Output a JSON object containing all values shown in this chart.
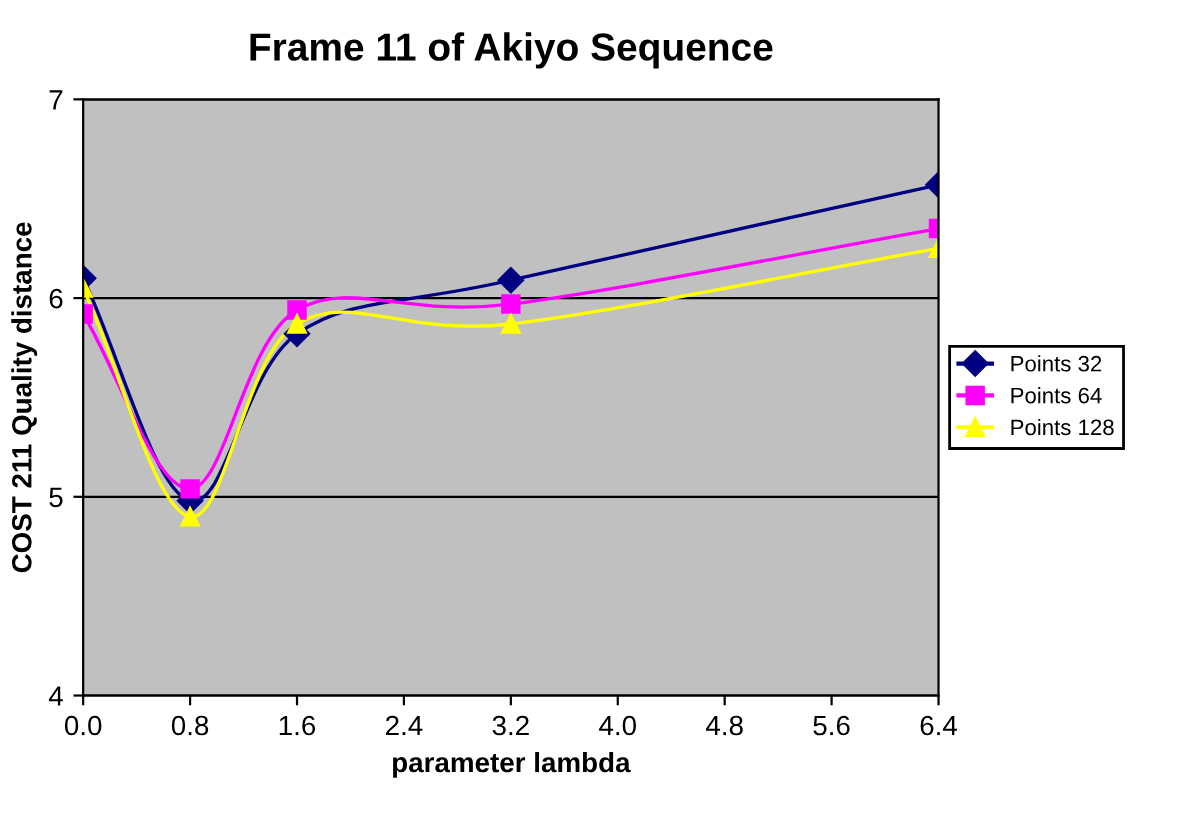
{
  "chart_data": {
    "type": "line",
    "title": "Frame 11 of Akiyo Sequence",
    "xlabel": "parameter lambda",
    "ylabel": "COST 211 Quality distance",
    "x": [
      0.0,
      0.8,
      1.6,
      3.2,
      6.4
    ],
    "series": [
      {
        "name": "Points 32",
        "color": "#000080",
        "marker": "diamond",
        "values": [
          6.1,
          4.98,
          5.82,
          6.09,
          6.57
        ]
      },
      {
        "name": "Points 64",
        "color": "#ff00ff",
        "marker": "square",
        "values": [
          5.92,
          5.04,
          5.94,
          5.97,
          6.35
        ]
      },
      {
        "name": "Points 128",
        "color": "#ffff00",
        "marker": "triangle",
        "values": [
          6.05,
          4.9,
          5.87,
          5.87,
          6.25
        ]
      }
    ],
    "xlim": [
      0.0,
      6.4
    ],
    "xticks": [
      {
        "value": 0.0,
        "label": "0.0"
      },
      {
        "value": 0.8,
        "label": "0.8"
      },
      {
        "value": 1.6,
        "label": "1.6"
      },
      {
        "value": 2.4,
        "label": "2.4"
      },
      {
        "value": 3.2,
        "label": "3.2"
      },
      {
        "value": 4.0,
        "label": "4.0"
      },
      {
        "value": 4.8,
        "label": "4.8"
      },
      {
        "value": 5.6,
        "label": "5.6"
      },
      {
        "value": 6.4,
        "label": "6.4"
      }
    ],
    "ylim": [
      4,
      7
    ],
    "yticks": [
      4,
      5,
      6,
      7
    ],
    "grid": "y",
    "legend": "right",
    "line_style": "solid"
  }
}
